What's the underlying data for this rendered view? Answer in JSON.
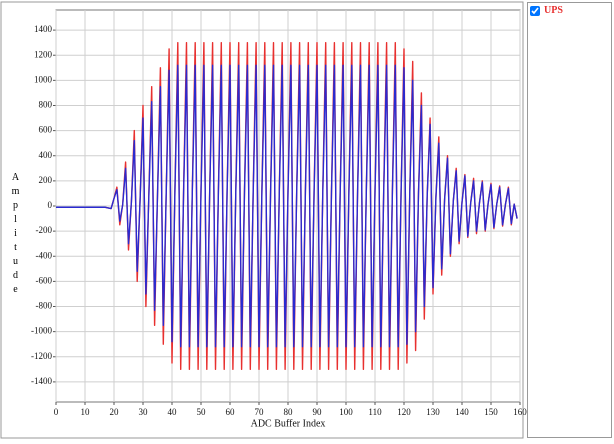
{
  "chart_data": {
    "type": "line",
    "xlabel": "ADC Buffer Index",
    "ylabel": "Amplitude",
    "xlim": [
      0,
      160
    ],
    "ylim": [
      -1560,
      1560
    ],
    "xticks": [
      0,
      10,
      20,
      30,
      40,
      50,
      60,
      70,
      80,
      90,
      100,
      110,
      120,
      130,
      140,
      150,
      160
    ],
    "yticks": [
      -1400,
      -1200,
      -1000,
      -800,
      -600,
      -400,
      -200,
      0,
      200,
      400,
      600,
      800,
      1000,
      1200,
      1400
    ],
    "grid": true,
    "legend": "right",
    "x": [
      0,
      1,
      2,
      3,
      4,
      5,
      6,
      7,
      8,
      9,
      10,
      11,
      12,
      13,
      14,
      15,
      16,
      17,
      18,
      19,
      20,
      21,
      22,
      23,
      24,
      25,
      26,
      27,
      28,
      29,
      30,
      31,
      32,
      33,
      34,
      35,
      36,
      37,
      38,
      39,
      40,
      41,
      42,
      43,
      44,
      45,
      46,
      47,
      48,
      49,
      50,
      51,
      52,
      53,
      54,
      55,
      56,
      57,
      58,
      59,
      60,
      61,
      62,
      63,
      64,
      65,
      66,
      67,
      68,
      69,
      70,
      71,
      72,
      73,
      74,
      75,
      76,
      77,
      78,
      79,
      80,
      81,
      82,
      83,
      84,
      85,
      86,
      87,
      88,
      89,
      90,
      91,
      92,
      93,
      94,
      95,
      96,
      97,
      98,
      99,
      100,
      101,
      102,
      103,
      104,
      105,
      106,
      107,
      108,
      109,
      110,
      111,
      112,
      113,
      114,
      115,
      116,
      117,
      118,
      119,
      120,
      121,
      122,
      123,
      124,
      125,
      126,
      127,
      128,
      129,
      130,
      131,
      132,
      133,
      134,
      135,
      136,
      137,
      138,
      139,
      140,
      141,
      142,
      143,
      144,
      145,
      146,
      147,
      148,
      149,
      150,
      151,
      152,
      153,
      154,
      155,
      156,
      157,
      158,
      159
    ],
    "series": [
      {
        "name": "UPS",
        "color": "#e8302f",
        "values": [
          -10,
          -10,
          -10,
          -10,
          -10,
          -10,
          -10,
          -10,
          -10,
          -10,
          -10,
          -10,
          -10,
          -10,
          -10,
          -10,
          -10,
          -10,
          -15,
          -20,
          60,
          150,
          -150,
          15,
          350,
          -350,
          35,
          600,
          -600,
          60,
          800,
          -800,
          80,
          950,
          -950,
          95,
          1100,
          -1100,
          110,
          1250,
          -1250,
          125,
          1300,
          -1300,
          130,
          1300,
          -1300,
          130,
          1300,
          -1300,
          130,
          1300,
          -1300,
          130,
          1300,
          -1300,
          130,
          1300,
          -1300,
          130,
          1300,
          -1300,
          130,
          1300,
          -1300,
          130,
          1300,
          -1300,
          130,
          1300,
          -1300,
          130,
          1300,
          -1300,
          130,
          1300,
          -1300,
          130,
          1300,
          -1300,
          130,
          1300,
          -1300,
          130,
          1300,
          -1300,
          130,
          1300,
          -1300,
          130,
          1300,
          -1300,
          130,
          1300,
          -1300,
          130,
          1300,
          -1300,
          130,
          1300,
          -1300,
          130,
          1300,
          -1300,
          130,
          1300,
          -1300,
          130,
          1300,
          -1300,
          130,
          1300,
          -1300,
          130,
          1300,
          -1300,
          130,
          1300,
          -1300,
          130,
          1250,
          -1250,
          125,
          1150,
          -1150,
          115,
          900,
          -900,
          90,
          700,
          -700,
          70,
          550,
          -550,
          55,
          400,
          -400,
          40,
          300,
          -300,
          30,
          250,
          -250,
          25,
          220,
          -220,
          22,
          200,
          -200,
          20,
          180,
          -180,
          18,
          160,
          -160,
          16,
          150,
          -150,
          15,
          -100
        ]
      },
      {
        "color": "#2a2ad0",
        "values": [
          -10,
          -10,
          -10,
          -10,
          -10,
          -10,
          -10,
          -10,
          -10,
          -10,
          -10,
          -10,
          -10,
          -10,
          -10,
          -10,
          -10,
          -10,
          -15,
          -20,
          60,
          130,
          -120,
          10,
          300,
          -300,
          30,
          520,
          -520,
          50,
          700,
          -700,
          70,
          830,
          -830,
          80,
          950,
          -950,
          100,
          1080,
          -1080,
          110,
          1120,
          -1120,
          110,
          1120,
          -1120,
          110,
          1120,
          -1120,
          110,
          1120,
          -1120,
          110,
          1120,
          -1120,
          110,
          1120,
          -1120,
          110,
          1120,
          -1120,
          110,
          1120,
          -1120,
          110,
          1120,
          -1120,
          110,
          1120,
          -1120,
          110,
          1120,
          -1120,
          110,
          1120,
          -1120,
          110,
          1120,
          -1120,
          110,
          1120,
          -1120,
          110,
          1120,
          -1120,
          110,
          1120,
          -1120,
          110,
          1120,
          -1120,
          110,
          1120,
          -1120,
          110,
          1120,
          -1120,
          110,
          1120,
          -1120,
          110,
          1120,
          -1120,
          110,
          1120,
          -1120,
          110,
          1120,
          -1120,
          110,
          1120,
          -1120,
          110,
          1120,
          -1120,
          110,
          1120,
          -1120,
          110,
          1100,
          -1100,
          110,
          1000,
          -1000,
          100,
          800,
          -800,
          80,
          650,
          -650,
          65,
          500,
          -500,
          50,
          380,
          -380,
          38,
          280,
          -280,
          28,
          240,
          -240,
          24,
          200,
          -200,
          20,
          190,
          -190,
          19,
          170,
          -170,
          17,
          150,
          -150,
          15,
          140,
          -140,
          14,
          -100
        ]
      }
    ]
  }
}
